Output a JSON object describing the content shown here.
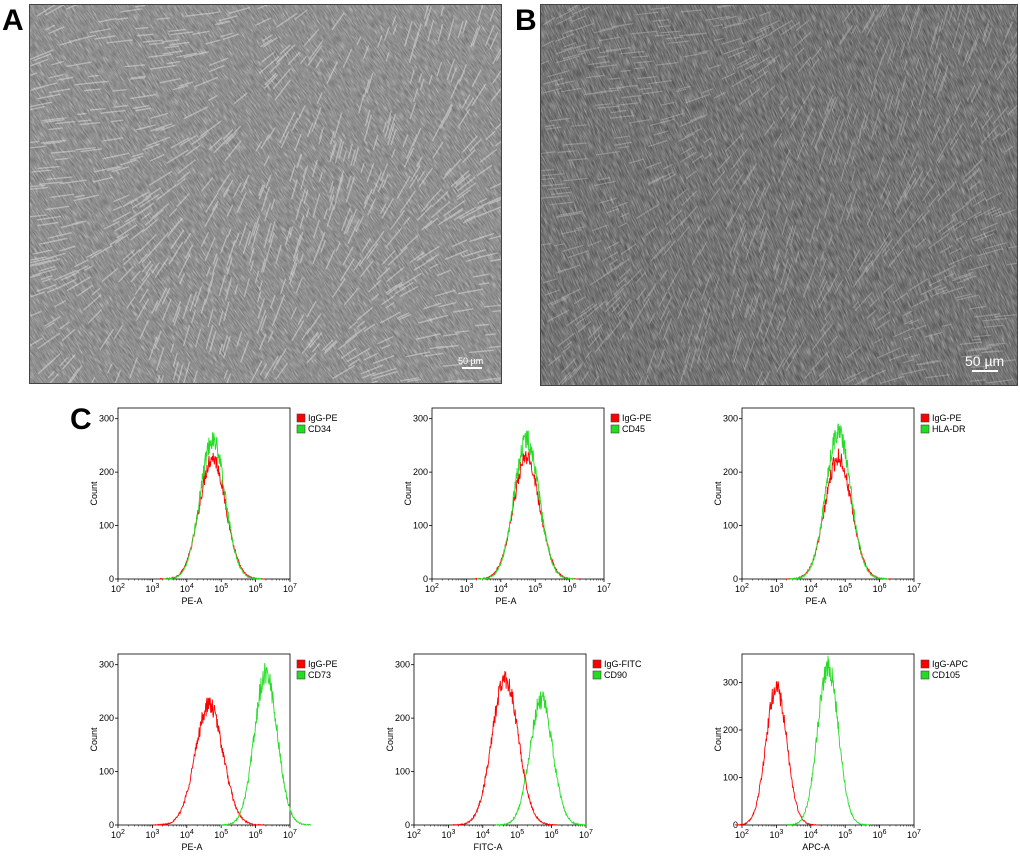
{
  "panels": {
    "a_label": "A",
    "b_label": "B",
    "c_label": "C"
  },
  "micrographs": [
    {
      "id": "A",
      "scale_text": "50 µm"
    },
    {
      "id": "B",
      "scale_text": "50 µm"
    }
  ],
  "colors": {
    "isotype": "#ff0000",
    "marker": "#22dd22",
    "legend_border": "#444444"
  },
  "chart_data": [
    {
      "type": "line",
      "subtype": "flow-cytometry-histogram",
      "xlabel": "PE-A",
      "ylabel": "Count",
      "xscale": "log10",
      "xlim": [
        100,
        10000000
      ],
      "ylim": [
        0,
        320
      ],
      "yticks": [
        0,
        100,
        200,
        300
      ],
      "xtick_exponents": [
        2,
        3,
        4,
        5,
        6,
        7
      ],
      "series": [
        {
          "name": "IgG-PE",
          "color": "#ff0000",
          "peak_log": 4.75,
          "peak_count": 228,
          "width": 0.38
        },
        {
          "name": "CD34",
          "color": "#22dd22",
          "peak_log": 4.75,
          "peak_count": 262,
          "width": 0.36
        }
      ]
    },
    {
      "type": "line",
      "subtype": "flow-cytometry-histogram",
      "xlabel": "PE-A",
      "ylabel": "Count",
      "xscale": "log10",
      "xlim": [
        100,
        10000000
      ],
      "ylim": [
        0,
        320
      ],
      "yticks": [
        0,
        100,
        200,
        300
      ],
      "xtick_exponents": [
        2,
        3,
        4,
        5,
        6,
        7
      ],
      "series": [
        {
          "name": "IgG-PE",
          "color": "#ff0000",
          "peak_log": 4.75,
          "peak_count": 228,
          "width": 0.38
        },
        {
          "name": "CD45",
          "color": "#22dd22",
          "peak_log": 4.75,
          "peak_count": 262,
          "width": 0.36
        }
      ]
    },
    {
      "type": "line",
      "subtype": "flow-cytometry-histogram",
      "xlabel": "PE-A",
      "ylabel": "Count",
      "xscale": "log10",
      "xlim": [
        100,
        10000000
      ],
      "ylim": [
        0,
        320
      ],
      "yticks": [
        0,
        100,
        200,
        300
      ],
      "xtick_exponents": [
        2,
        3,
        4,
        5,
        6,
        7
      ],
      "series": [
        {
          "name": "IgG-PE",
          "color": "#ff0000",
          "peak_log": 4.8,
          "peak_count": 228,
          "width": 0.38
        },
        {
          "name": "HLA-DR",
          "color": "#22dd22",
          "peak_log": 4.8,
          "peak_count": 275,
          "width": 0.36
        }
      ]
    },
    {
      "type": "line",
      "subtype": "flow-cytometry-histogram",
      "xlabel": "PE-A",
      "ylabel": "Count",
      "xscale": "log10",
      "xlim": [
        100,
        10000000
      ],
      "ylim": [
        0,
        320
      ],
      "yticks": [
        0,
        100,
        200,
        300
      ],
      "xtick_exponents": [
        2,
        3,
        4,
        5,
        6,
        7
      ],
      "series": [
        {
          "name": "IgG-PE",
          "color": "#ff0000",
          "peak_log": 4.65,
          "peak_count": 225,
          "width": 0.4
        },
        {
          "name": "CD73",
          "color": "#22dd22",
          "peak_log": 6.3,
          "peak_count": 285,
          "width": 0.33
        }
      ]
    },
    {
      "type": "line",
      "subtype": "flow-cytometry-histogram",
      "xlabel": "FITC-A",
      "ylabel": "Count",
      "xscale": "log10",
      "xlim": [
        100,
        10000000
      ],
      "ylim": [
        0,
        320
      ],
      "yticks": [
        0,
        100,
        200,
        300
      ],
      "xtick_exponents": [
        2,
        3,
        4,
        5,
        6,
        7
      ],
      "series": [
        {
          "name": "IgG-FITC",
          "color": "#ff0000",
          "peak_log": 4.65,
          "peak_count": 275,
          "width": 0.38
        },
        {
          "name": "CD90",
          "color": "#22dd22",
          "peak_log": 5.7,
          "peak_count": 235,
          "width": 0.33
        }
      ]
    },
    {
      "type": "line",
      "subtype": "flow-cytometry-histogram",
      "xlabel": "APC-A",
      "ylabel": "Count",
      "xscale": "log10",
      "xlim": [
        100,
        10000000
      ],
      "ylim": [
        0,
        360
      ],
      "yticks": [
        0,
        100,
        200,
        300
      ],
      "xtick_exponents": [
        2,
        3,
        4,
        5,
        6,
        7
      ],
      "series": [
        {
          "name": "IgG-APC",
          "color": "#ff0000",
          "peak_log": 3.0,
          "peak_count": 290,
          "width": 0.3
        },
        {
          "name": "CD105",
          "color": "#22dd22",
          "peak_log": 4.5,
          "peak_count": 335,
          "width": 0.3
        }
      ]
    }
  ]
}
